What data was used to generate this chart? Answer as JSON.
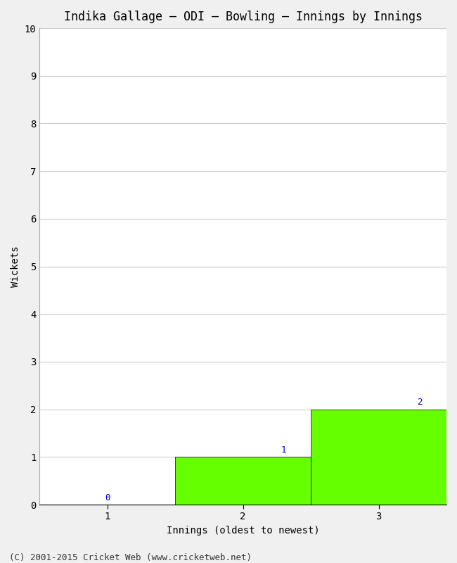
{
  "title": "Indika Gallage – ODI – Bowling – Innings by Innings",
  "xlabel": "Innings (oldest to newest)",
  "ylabel": "Wickets",
  "categories": [
    1,
    2,
    3
  ],
  "values": [
    0,
    1,
    2
  ],
  "bar_color": "#66ff00",
  "bar_edge_color": "#000000",
  "ylim": [
    0,
    10
  ],
  "yticks": [
    0,
    1,
    2,
    3,
    4,
    5,
    6,
    7,
    8,
    9,
    10
  ],
  "xticks": [
    1,
    2,
    3
  ],
  "label_color": "#0000cc",
  "background_color": "#f0f0f0",
  "plot_bg_color": "#ffffff",
  "footer": "(C) 2001-2015 Cricket Web (www.cricketweb.net)",
  "title_fontsize": 12,
  "axis_label_fontsize": 10,
  "tick_fontsize": 10,
  "footer_fontsize": 9,
  "bar_label_fontsize": 9,
  "bar_width": 1.0,
  "xlim": [
    0.5,
    3.5
  ]
}
